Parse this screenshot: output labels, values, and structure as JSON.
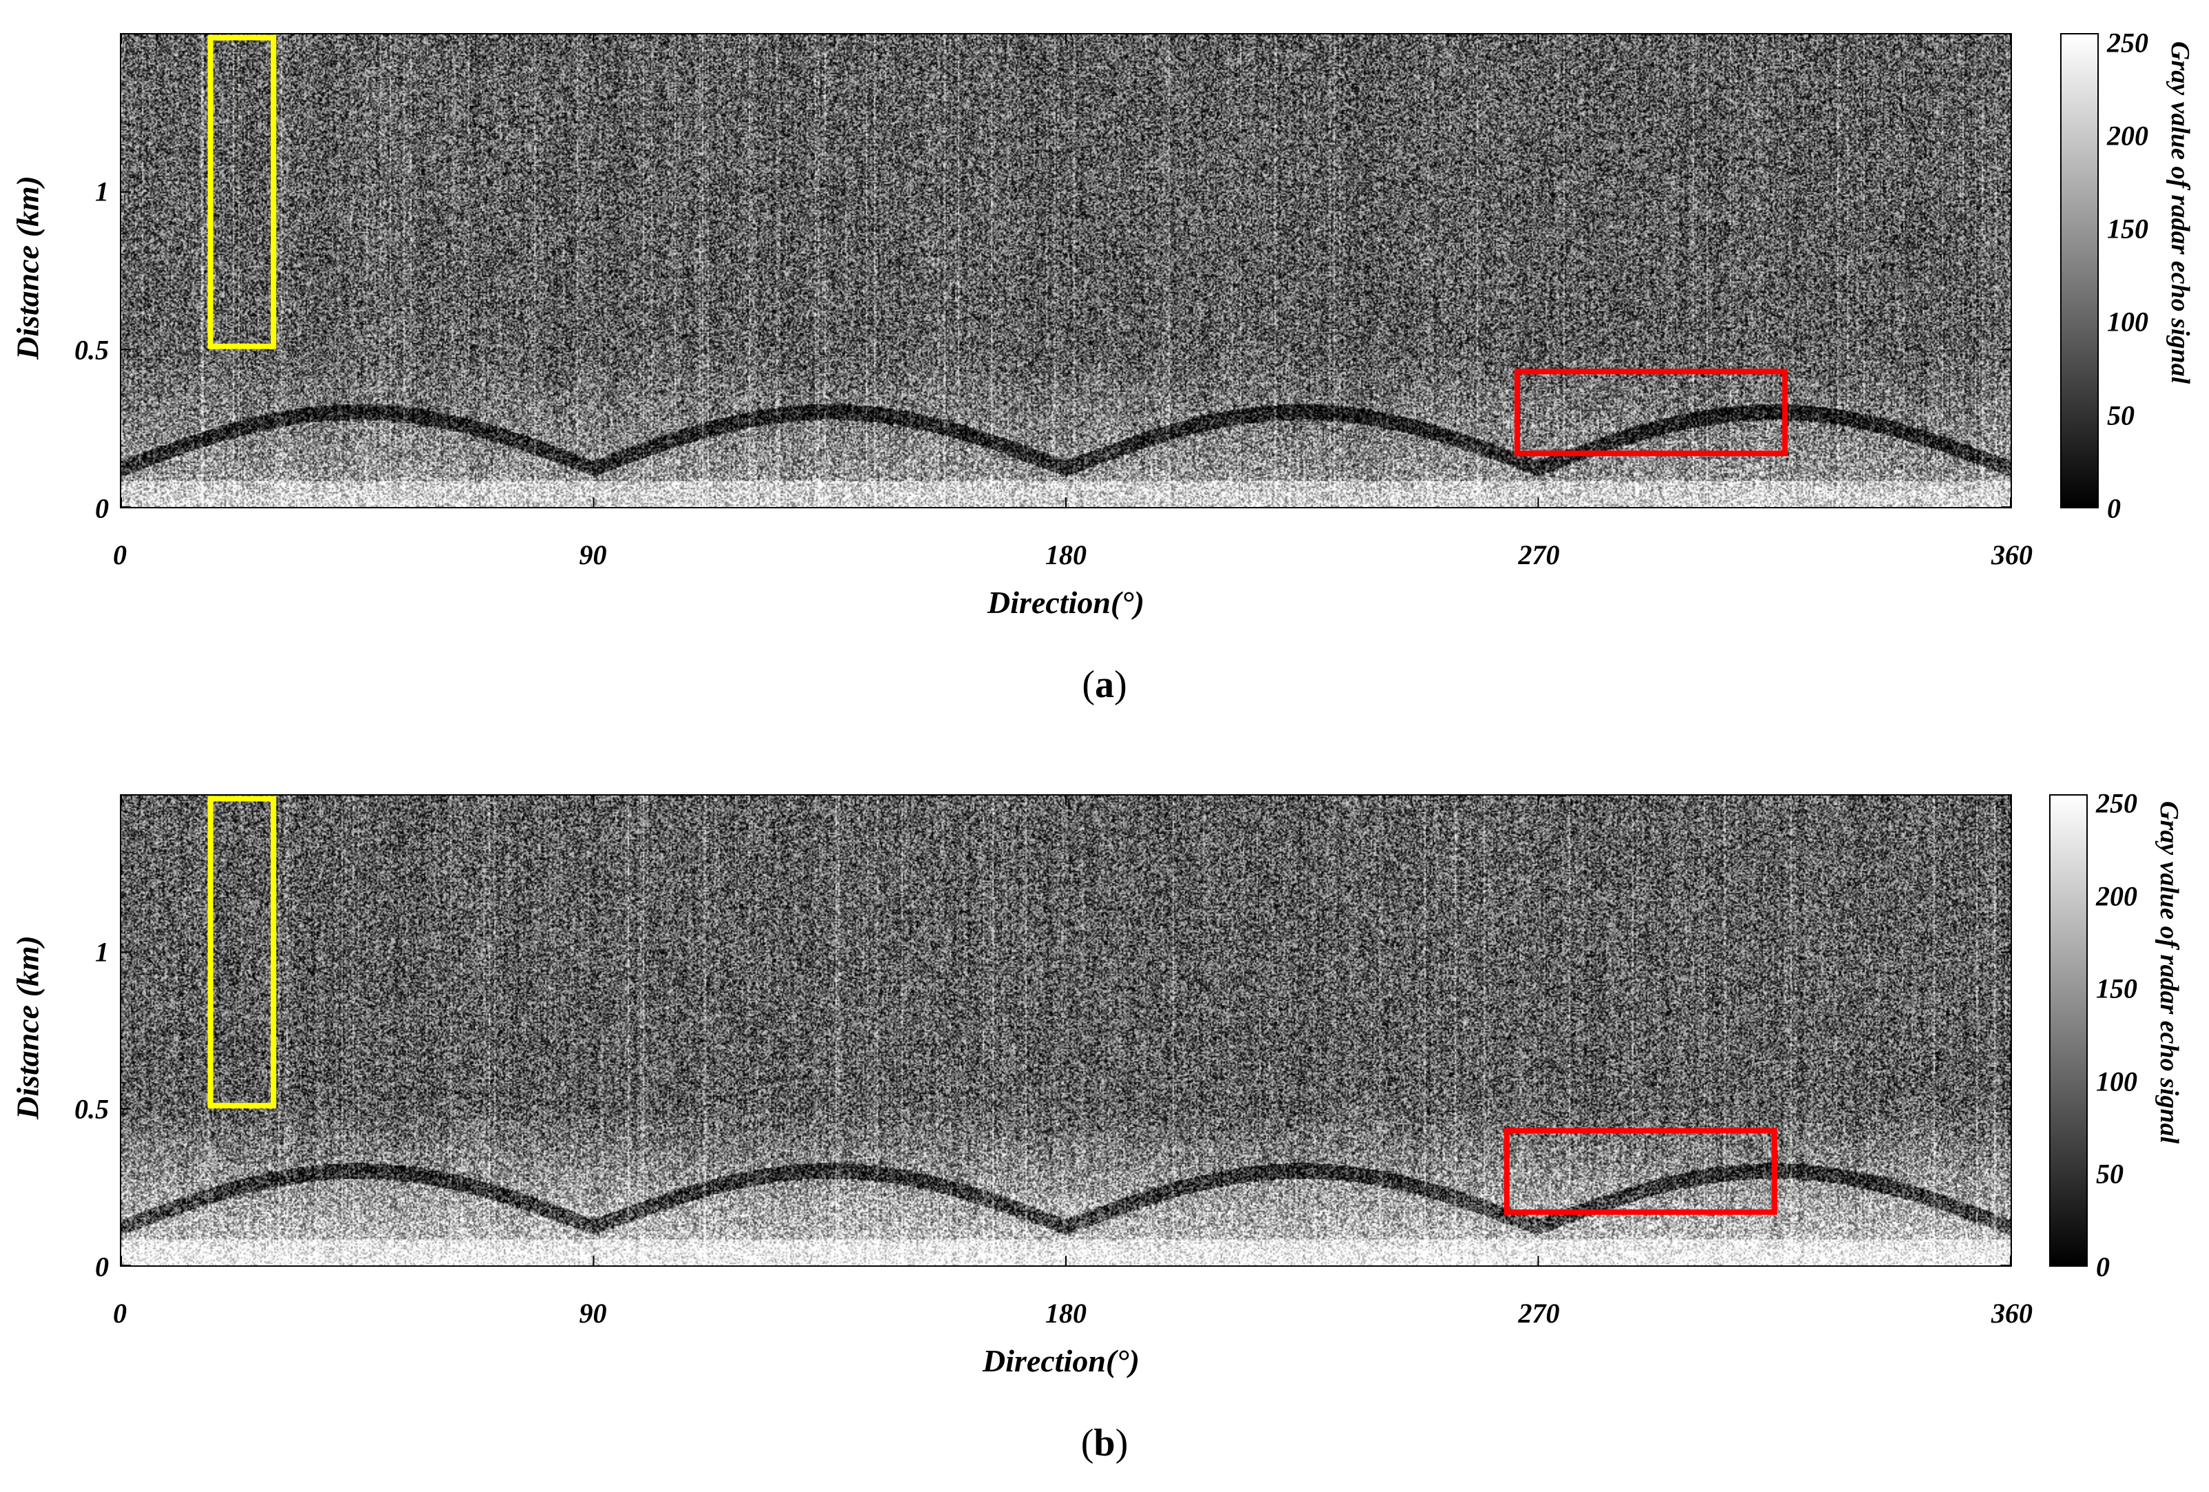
{
  "chart_data": [
    {
      "type": "heatmap",
      "panel_label": "a",
      "xlabel": "Direction(°)",
      "ylabel": "Distance (km)",
      "xlim": [
        0,
        360
      ],
      "ylim": [
        0,
        1.5
      ],
      "xticks": [
        "0",
        "90",
        "180",
        "270",
        "360"
      ],
      "yticks": [
        "0",
        "0.5",
        "1"
      ],
      "colorbar": {
        "label": "Gray value of radar echo signal",
        "range": [
          0,
          255
        ],
        "ticks": [
          "0",
          "50",
          "100",
          "150",
          "200",
          "250"
        ],
        "colormap": "gray"
      },
      "annotations": [
        {
          "shape": "rectangle",
          "color": "#ffff00",
          "x_range": [
            17,
            29
          ],
          "y_range": [
            0.51,
            1.49
          ]
        },
        {
          "shape": "rectangle",
          "color": "#ff0000",
          "x_range": [
            266,
            317
          ],
          "y_range": [
            0.17,
            0.43
          ]
        }
      ],
      "grid": false
    },
    {
      "type": "heatmap",
      "panel_label": "b",
      "xlabel": "Direction(°)",
      "ylabel": "Distance (km)",
      "xlim": [
        0,
        360
      ],
      "ylim": [
        0,
        1.5
      ],
      "xticks": [
        "0",
        "90",
        "180",
        "270",
        "360"
      ],
      "yticks": [
        "0",
        "0.5",
        "1"
      ],
      "colorbar": {
        "label": "Gray value of radar echo signal",
        "range": [
          0,
          255
        ],
        "ticks": [
          "0",
          "50",
          "100",
          "150",
          "200",
          "250"
        ],
        "colormap": "gray"
      },
      "annotations": [
        {
          "shape": "rectangle",
          "color": "#ffff00",
          "x_range": [
            17,
            29
          ],
          "y_range": [
            0.51,
            1.49
          ]
        },
        {
          "shape": "rectangle",
          "color": "#ff0000",
          "x_range": [
            264,
            315
          ],
          "y_range": [
            0.17,
            0.43
          ]
        }
      ],
      "grid": false
    }
  ]
}
